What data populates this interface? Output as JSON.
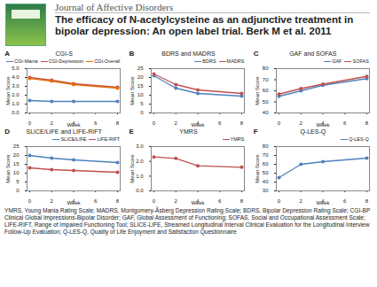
{
  "journal": "Journal of Affective Disorders",
  "title": "The efficacy of N-acetylcysteine as an adjunctive treatment in bipolar depression: An open label trial. Berk M et al. 2011",
  "footnote": "YMRS, Young Mania Rating Scale; MADRS, Montgomery-Åsberg Depression Rating Scale; BDRS, Bipolar Depression Rating Scale; CGI-BP Clinical Global Impressions-Bipolar Disorder; GAF, Global Assessment of Functioning; SOFAS, Social and Occupational Assessment Scale; LIFE-RIFT, Range of Impaired Functioning Tool; SLICE-LIFE, Streamed Longitudinal Interval Clinical Evaluation for the Longitudinal Interview Follow-Up Evaluation; Q-LES-Q, Quality of Life Enjoyment and Satisfaction Questionnaire",
  "chart_data": [
    {
      "type": "line",
      "title": "A",
      "subtitle": "CGI-S",
      "xlabel": "Week",
      "ylabel": "Mean Score",
      "marker": "circle",
      "x": [
        0,
        2,
        4,
        8
      ],
      "xlim": [
        0,
        8
      ],
      "xticks": [
        0,
        2,
        4,
        6,
        8
      ],
      "ylim": [
        0,
        5
      ],
      "yticks": [
        0,
        1,
        2,
        3,
        4,
        5
      ],
      "series": [
        {
          "name": "CGI-Mania",
          "color": "#4f81bd",
          "values": [
            1.4,
            1.3,
            1.3,
            1.3
          ]
        },
        {
          "name": "CGI-Depression",
          "color": "#c0504d",
          "values": [
            4.0,
            3.7,
            3.3,
            2.9
          ]
        },
        {
          "name": "CGI-Overall",
          "color": "#e46c0a",
          "values": [
            3.9,
            3.6,
            3.2,
            2.8
          ]
        }
      ]
    },
    {
      "type": "line",
      "title": "B",
      "subtitle": "BDRS and MADRS",
      "xlabel": "Week",
      "ylabel": "Mean Score",
      "marker": "circle",
      "x": [
        0,
        2,
        4,
        8
      ],
      "xlim": [
        0,
        8
      ],
      "xticks": [
        0,
        2,
        4,
        6,
        8
      ],
      "ylim": [
        0,
        25
      ],
      "yticks": [
        0,
        5,
        10,
        15,
        20,
        25
      ],
      "series": [
        {
          "name": "BDRS",
          "color": "#4f81bd",
          "values": [
            21,
            14,
            11,
            9.5
          ]
        },
        {
          "name": "MADRS",
          "color": "#c0504d",
          "values": [
            22,
            16,
            13,
            11
          ]
        }
      ]
    },
    {
      "type": "line",
      "title": "C",
      "subtitle": "GAF and SOFAS",
      "xlabel": "Week",
      "ylabel": "Mean Score",
      "marker": "circle",
      "x": [
        0,
        2,
        4,
        8
      ],
      "xlim": [
        0,
        8
      ],
      "xticks": [
        0,
        2,
        4,
        6,
        8
      ],
      "ylim": [
        40,
        80
      ],
      "yticks": [
        40,
        50,
        60,
        70,
        80
      ],
      "series": [
        {
          "name": "GAF",
          "color": "#4f81bd",
          "values": [
            55,
            60,
            65,
            71
          ]
        },
        {
          "name": "SOFAS",
          "color": "#c0504d",
          "values": [
            57,
            62,
            66,
            73
          ]
        }
      ]
    },
    {
      "type": "line",
      "title": "D",
      "subtitle": "SLICE/LIFE and LIFE-RIFT",
      "xlabel": "Week",
      "ylabel": "Mean Score",
      "marker": "circle",
      "x": [
        0,
        2,
        4,
        8
      ],
      "xlim": [
        0,
        8
      ],
      "xticks": [
        0,
        2,
        4,
        6,
        8
      ],
      "ylim": [
        0,
        25
      ],
      "yticks": [
        0,
        5,
        10,
        15,
        20,
        25
      ],
      "series": [
        {
          "name": "SLICE/LIFE",
          "color": "#4f81bd",
          "values": [
            20,
            18.5,
            17.5,
            16
          ]
        },
        {
          "name": "LIFE-RIFT",
          "color": "#c0504d",
          "values": [
            13,
            12,
            11.5,
            10.5
          ]
        }
      ]
    },
    {
      "type": "line",
      "title": "E",
      "subtitle": "YMRS",
      "xlabel": "Week",
      "ylabel": "Mean Score",
      "marker": "circle",
      "x": [
        0,
        2,
        4,
        8
      ],
      "xlim": [
        0,
        8
      ],
      "xticks": [
        0,
        2,
        4,
        6,
        8
      ],
      "ylim": [
        0,
        3
      ],
      "yticks": [
        0,
        1,
        2,
        3
      ],
      "series": [
        {
          "name": "YMRS",
          "color": "#c0504d",
          "values": [
            2.3,
            2.2,
            1.7,
            1.6
          ]
        }
      ]
    },
    {
      "type": "line",
      "title": "F",
      "subtitle": "Q-LES-Q",
      "xlabel": "Week",
      "ylabel": "Mean Score",
      "marker": "circle",
      "x": [
        0,
        2,
        4,
        8
      ],
      "xlim": [
        0,
        8
      ],
      "xticks": [
        0,
        2,
        4,
        6,
        8
      ],
      "ylim": [
        30,
        80
      ],
      "yticks": [
        30,
        40,
        50,
        60,
        70,
        80
      ],
      "series": [
        {
          "name": "Q-LES-Q",
          "color": "#4f81bd",
          "values": [
            45,
            60,
            63,
            67
          ]
        }
      ]
    }
  ]
}
